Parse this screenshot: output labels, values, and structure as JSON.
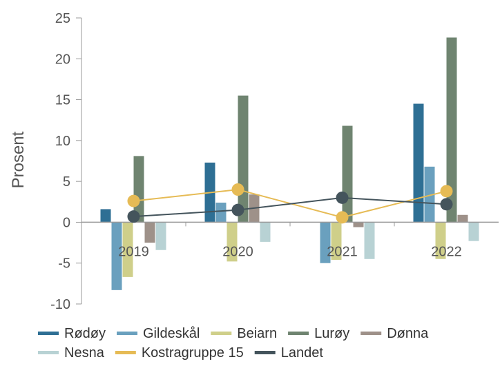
{
  "chart_data": {
    "type": "bar",
    "ylabel": "Prosent",
    "xlabel": "",
    "ylim": [
      -10,
      25
    ],
    "yticks": [
      -10,
      -5,
      0,
      5,
      10,
      15,
      20,
      25
    ],
    "categories": [
      "2019",
      "2020",
      "2021",
      "2022"
    ],
    "series": [
      {
        "name": "Rødøy",
        "type": "bar",
        "color": "#2e6f94",
        "values": [
          1.6,
          7.3,
          0.0,
          14.5
        ]
      },
      {
        "name": "Gildeskål",
        "type": "bar",
        "color": "#6aa0be",
        "values": [
          -8.3,
          2.4,
          -5.0,
          6.8
        ]
      },
      {
        "name": "Beiarn",
        "type": "bar",
        "color": "#cfcf8a",
        "values": [
          -6.7,
          -4.8,
          -4.6,
          -4.5
        ]
      },
      {
        "name": "Lurøy",
        "type": "bar",
        "color": "#6f8470",
        "values": [
          8.1,
          15.5,
          11.8,
          22.6
        ]
      },
      {
        "name": "Dønna",
        "type": "bar",
        "color": "#9e9189",
        "values": [
          -2.5,
          3.4,
          -0.6,
          0.9
        ]
      },
      {
        "name": "Nesna",
        "type": "bar",
        "color": "#b8d2d4",
        "values": [
          -3.4,
          -2.4,
          -4.5,
          -2.3
        ]
      },
      {
        "name": "Kostragruppe 15",
        "type": "line",
        "color": "#e6bb55",
        "values": [
          2.6,
          4.0,
          0.6,
          3.8
        ]
      },
      {
        "name": "Landet",
        "type": "line",
        "color": "#44545c",
        "values": [
          0.7,
          1.5,
          3.0,
          2.2
        ]
      }
    ],
    "grid": false,
    "legend": "bottom"
  }
}
